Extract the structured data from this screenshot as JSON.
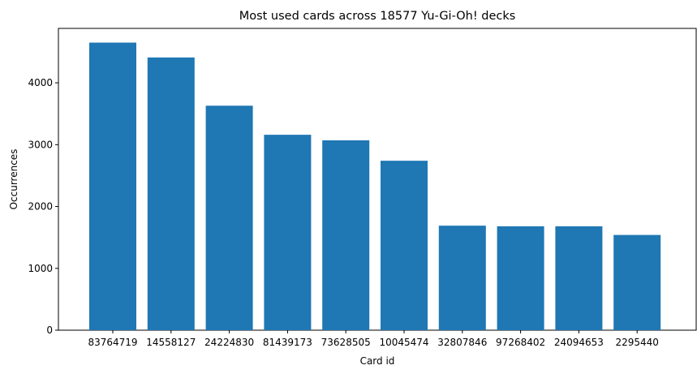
{
  "chart_data": {
    "type": "bar",
    "title": "Most used cards across 18577 Yu-Gi-Oh! decks",
    "xlabel": "Card id",
    "ylabel": "Occurrences",
    "categories": [
      "83764719",
      "14558127",
      "24224830",
      "81439173",
      "73628505",
      "10045474",
      "32807846",
      "97268402",
      "24094653",
      "2295440"
    ],
    "values": [
      4650,
      4410,
      3630,
      3160,
      3070,
      2740,
      1690,
      1680,
      1680,
      1540
    ],
    "ylim": [
      0,
      4880
    ],
    "yticks": [
      0,
      1000,
      2000,
      3000,
      4000
    ],
    "grid": false,
    "bar_color": "#1f77b4"
  }
}
